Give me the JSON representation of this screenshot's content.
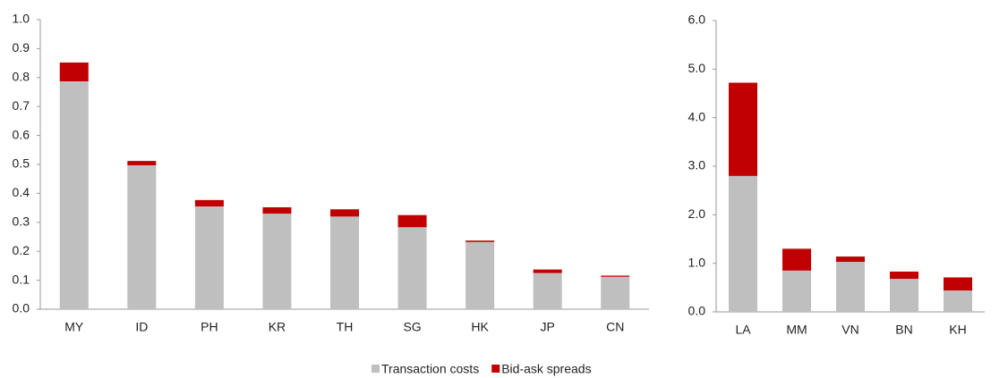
{
  "chart_data": [
    {
      "type": "stacked_bar",
      "categories": [
        "MY",
        "ID",
        "PH",
        "KR",
        "TH",
        "SG",
        "HK",
        "JP",
        "CN"
      ],
      "series": [
        {
          "name": "Transaction costs",
          "color": "#bfbfbf",
          "values": [
            0.787,
            0.497,
            0.355,
            0.33,
            0.32,
            0.283,
            0.232,
            0.125,
            0.112
          ]
        },
        {
          "name": "Bid-ask spreads",
          "color": "#c00000",
          "values": [
            0.065,
            0.015,
            0.022,
            0.022,
            0.025,
            0.042,
            0.005,
            0.012,
            0.004
          ]
        }
      ],
      "ylim": [
        0,
        1
      ],
      "yticks": [
        {
          "value": 0,
          "label": "0.0"
        },
        0.1,
        0.2,
        0.3,
        0.4,
        0.5,
        0.6,
        0.7,
        0.8,
        0.9,
        {
          "value": 1,
          "label": "1.0"
        }
      ]
    },
    {
      "type": "stacked_bar",
      "categories": [
        "LA",
        "MM",
        "VN",
        "BN",
        "KH"
      ],
      "series": [
        {
          "color": "#bfbfbf",
          "values": [
            2.8,
            0.85,
            1.03,
            0.68,
            0.44
          ]
        },
        {
          "color": "#c00000",
          "values": [
            1.92,
            0.45,
            0.11,
            0.15,
            0.27
          ]
        }
      ],
      "ylim": [
        0,
        6
      ],
      "yticks": [
        {
          "value": 0,
          "label": "0.0"
        },
        {
          "value": 1,
          "label": "1.0"
        },
        {
          "value": 2,
          "label": "2.0"
        },
        {
          "value": 3,
          "label": "3.0"
        },
        {
          "value": 4,
          "label": "4.0"
        },
        {
          "value": 5,
          "label": "5.0"
        },
        {
          "value": 6,
          "label": "6.0"
        }
      ]
    }
  ]
}
